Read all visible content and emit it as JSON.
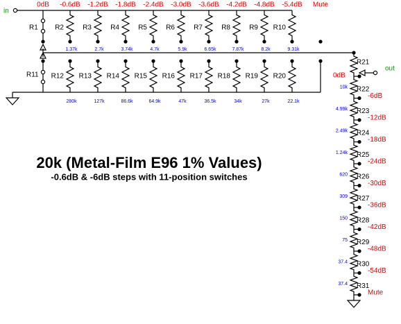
{
  "labels": {
    "input": "in",
    "output": "out"
  },
  "title": "20k (Metal-Film E96 1% Values)",
  "subtitle": "-0.6dB & -6dB steps with 11-position switches",
  "top_switch": {
    "steps": [
      "0dB",
      "-0.6dB",
      "-1.2dB",
      "-1.8dB",
      "-2.4dB",
      "-3.0dB",
      "-3.6dB",
      "-4.2dB",
      "-4.8dB",
      "-5.4dB",
      "Mute"
    ],
    "first_resistor": "R1",
    "resistors": [
      {
        "name": "R2",
        "value": "1.37k"
      },
      {
        "name": "R3",
        "value": "2.7k"
      },
      {
        "name": "R4",
        "value": "3.74k"
      },
      {
        "name": "R5",
        "value": "4.7k"
      },
      {
        "name": "R6",
        "value": "5.9k"
      },
      {
        "name": "R7",
        "value": "6.65k"
      },
      {
        "name": "R8",
        "value": "7.87k"
      },
      {
        "name": "R9",
        "value": "8.2k"
      },
      {
        "name": "R10",
        "value": "9.31k"
      }
    ]
  },
  "bottom_switch": {
    "first_resistor": "R11",
    "resistors": [
      {
        "name": "R12",
        "value": "280k"
      },
      {
        "name": "R13",
        "value": "127k"
      },
      {
        "name": "R14",
        "value": "86.6k"
      },
      {
        "name": "R15",
        "value": "64.9k"
      },
      {
        "name": "R16",
        "value": "47k"
      },
      {
        "name": "R17",
        "value": "36.5k"
      },
      {
        "name": "R18",
        "value": "34k"
      },
      {
        "name": "R19",
        "value": "27k"
      },
      {
        "name": "R20",
        "value": "22.1k"
      }
    ]
  },
  "ladder": {
    "first_resistor": "R21",
    "top_step": "0dB",
    "resistors": [
      {
        "name": "R22",
        "value": "10k"
      },
      {
        "name": "R23",
        "value": "4.99k"
      },
      {
        "name": "R24",
        "value": "2.49k"
      },
      {
        "name": "R25",
        "value": "1.24k"
      },
      {
        "name": "R26",
        "value": "620"
      },
      {
        "name": "R27",
        "value": "309"
      },
      {
        "name": "R28",
        "value": "150"
      },
      {
        "name": "R29",
        "value": "75"
      },
      {
        "name": "R30",
        "value": "37.4"
      },
      {
        "name": "R31",
        "value": "37.4"
      }
    ],
    "steps": [
      "-6dB",
      "-12dB",
      "-18dB",
      "-24dB",
      "-30dB",
      "-36dB",
      "-42dB",
      "-48dB",
      "-54dB",
      "Mute"
    ]
  }
}
